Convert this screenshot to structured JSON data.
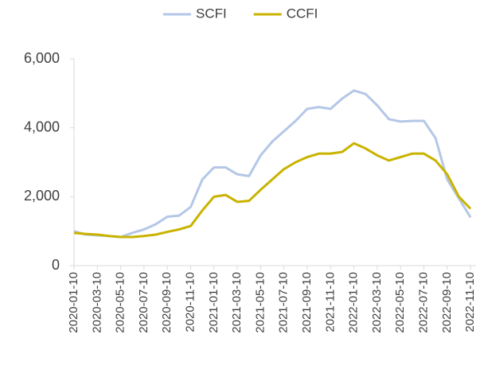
{
  "chart_data": {
    "type": "line",
    "categories": [
      "2020-01-10",
      null,
      "2020-03-10",
      null,
      "2020-05-10",
      null,
      "2020-07-10",
      null,
      "2020-09-10",
      null,
      "2020-11-10",
      null,
      "2021-01-10",
      null,
      "2021-03-10",
      null,
      "2021-05-10",
      null,
      "2021-07-10",
      null,
      "2021-09-10",
      null,
      "2021-11-10",
      null,
      "2022-01-10",
      null,
      "2022-03-10",
      null,
      "2022-05-10",
      null,
      "2022-07-10",
      null,
      "2022-09-10",
      null,
      "2022-11-10"
    ],
    "series": [
      {
        "name": "SCFI",
        "color": "#b4c7e7",
        "values": [
          1000,
          900,
          880,
          860,
          830,
          950,
          1050,
          1200,
          1420,
          1450,
          1700,
          2500,
          2850,
          2850,
          2650,
          2600,
          3200,
          3600,
          3900,
          4200,
          4550,
          4600,
          4550,
          4850,
          5080,
          4980,
          4650,
          4250,
          4180,
          4200,
          4200,
          3700,
          2500,
          1950,
          1400
        ]
      },
      {
        "name": "CCFI",
        "color": "#c9b300",
        "values": [
          950,
          920,
          900,
          860,
          830,
          830,
          860,
          900,
          980,
          1050,
          1150,
          1600,
          2000,
          2050,
          1850,
          1880,
          2200,
          2500,
          2800,
          3000,
          3150,
          3250,
          3250,
          3300,
          3550,
          3400,
          3200,
          3050,
          3150,
          3250,
          3250,
          3050,
          2650,
          2000,
          1650
        ]
      }
    ],
    "ylim": [
      0,
      6000
    ],
    "yticks": [
      0,
      {
        "value": 2000,
        "label": "2,000"
      },
      {
        "value": 4000,
        "label": "4,000"
      },
      {
        "value": 6000,
        "label": "6,000"
      }
    ],
    "grid": false,
    "legend": "top"
  }
}
